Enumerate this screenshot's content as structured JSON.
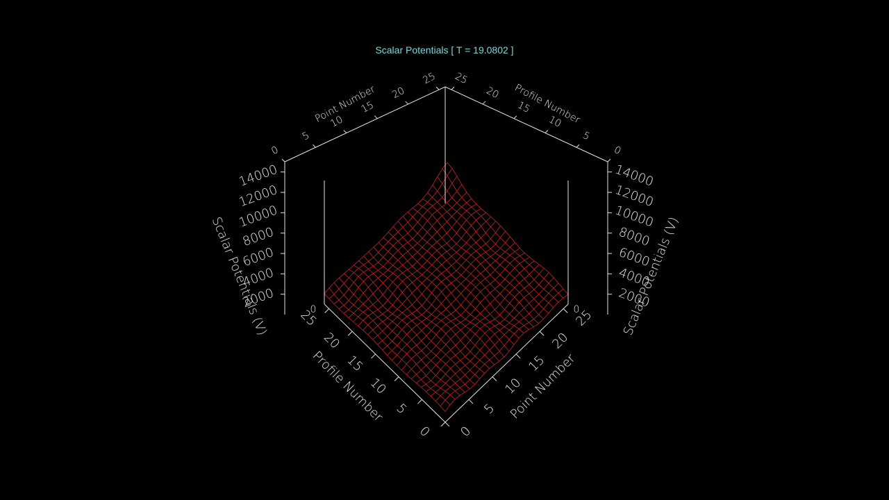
{
  "title": "Scalar Potentials [ T = 19.0802 ]",
  "colors": {
    "background": "#000000",
    "title": "#7fd7d7",
    "axes": "#e6e6e6",
    "mesh": "#cc2222"
  },
  "chart_data": {
    "type": "surface",
    "title": "Scalar Potentials [ T = 19.0802 ]",
    "mesh": {
      "nx": 26,
      "ny": 26,
      "approx_level": 1300,
      "peak_value": 2900,
      "peak_at": [
        26,
        26
      ]
    },
    "axes": {
      "point_number": {
        "label": "Point Number",
        "range": [
          0,
          26
        ],
        "ticks": [
          "0",
          "5",
          "10",
          "15",
          "20",
          "25"
        ]
      },
      "profile_number": {
        "label": "Profile Number",
        "range": [
          0,
          26
        ],
        "ticks": [
          "0",
          "5",
          "10",
          "15",
          "20",
          "25"
        ]
      },
      "scalar_potentials": {
        "label": "Scalar Potentials (V)",
        "range": [
          0,
          15000
        ],
        "ticks": [
          "2000",
          "4000",
          "6000",
          "8000",
          "10000",
          "12000",
          "14000"
        ],
        "tick_values": [
          2000,
          4000,
          6000,
          8000,
          10000,
          12000,
          14000
        ],
        "zero_label": "0"
      }
    }
  }
}
